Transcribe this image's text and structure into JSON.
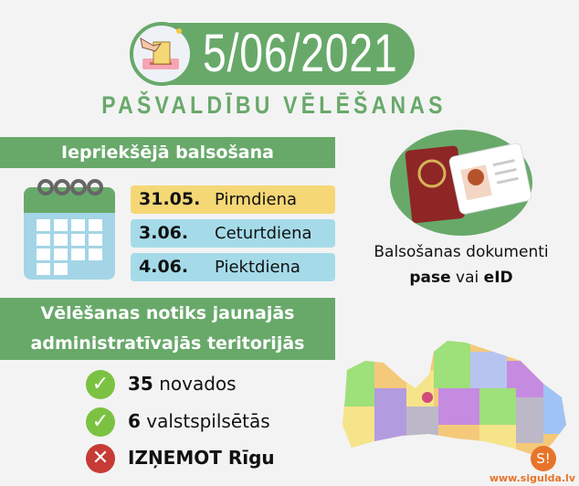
{
  "header": {
    "date": "5/06/2021",
    "subtitle": "PAŠVALDĪBU VĒLĒŠANAS",
    "icon": "ballot-box-icon"
  },
  "early_voting": {
    "title": "Iepriekšējā balsošana",
    "icon": "calendar-icon",
    "days": [
      {
        "date": "31.05.",
        "weekday": "Pirmdiena",
        "color": "#f5d776"
      },
      {
        "date": "3.06.",
        "weekday": "Ceturtdiena",
        "color": "#a5dbe9"
      },
      {
        "date": "4.06.",
        "weekday": "Piektdiena",
        "color": "#a5dbe9"
      }
    ]
  },
  "documents": {
    "icon": "passport-id-card-icon",
    "line1": "Balsošanas dokumenti",
    "bold1": "pase",
    "mid": " vai ",
    "bold2": "eID"
  },
  "territories": {
    "title_line1": "Vēlēšanas notiks jaunajās",
    "title_line2": "administratīvajās teritorijās",
    "items": [
      {
        "icon": "check-icon",
        "num": "35",
        "text": " novados"
      },
      {
        "icon": "check-icon",
        "num": "6",
        "text": " valstspilsētās"
      },
      {
        "icon": "cross-icon",
        "num": "IZŅEMOT",
        "text": " Rīgu"
      }
    ]
  },
  "map": {
    "icon": "latvia-map"
  },
  "brand": {
    "logo": "S!",
    "url": "www.sigulda.lv"
  },
  "colors": {
    "green": "#68a96a",
    "yellow": "#f5d776",
    "blue": "#a5dbe9",
    "check": "#7cc242",
    "cross": "#c63b35",
    "orange": "#e8742a"
  }
}
